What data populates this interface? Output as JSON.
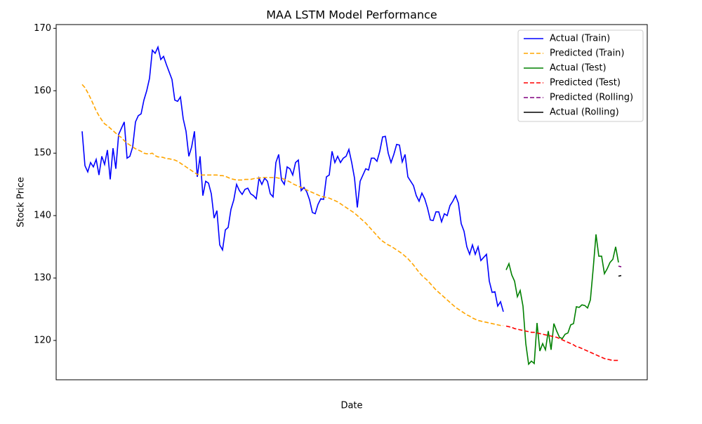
{
  "chart_data": {
    "type": "line",
    "title": "MAA LSTM Model Performance",
    "x_label": "Date",
    "y_label": "Stock Price",
    "xlim": [
      -9.25,
      201.25
    ],
    "ylim": [
      113.7,
      170.6
    ],
    "yticks": [
      120,
      130,
      140,
      150,
      160,
      170
    ],
    "legend": "upper right",
    "series": [
      {
        "name": "Actual (Train)",
        "color": "#0000ff",
        "linestyle": "solid",
        "x": [
          0,
          1,
          2,
          3,
          4,
          5,
          6,
          7,
          8,
          9,
          10,
          11,
          12,
          13,
          14,
          15,
          16,
          17,
          18,
          19,
          20,
          21,
          22,
          23,
          24,
          25,
          26,
          27,
          28,
          29,
          30,
          31,
          32,
          33,
          34,
          35,
          36,
          37,
          38,
          39,
          40,
          41,
          42,
          43,
          44,
          45,
          46,
          47,
          48,
          49,
          50,
          51,
          52,
          53,
          54,
          55,
          56,
          57,
          58,
          59,
          60,
          61,
          62,
          63,
          64,
          65,
          66,
          67,
          68,
          69,
          70,
          71,
          72,
          73,
          74,
          75,
          76,
          77,
          78,
          79,
          80,
          81,
          82,
          83,
          84,
          85,
          86,
          87,
          88,
          89,
          90,
          91,
          92,
          93,
          94,
          95,
          96,
          97,
          98,
          99,
          100,
          101,
          102,
          103,
          104,
          105,
          106,
          107,
          108,
          109,
          110,
          111,
          112,
          113,
          114,
          115,
          116,
          117,
          118,
          119,
          120,
          121,
          122,
          123,
          124,
          125,
          126,
          127,
          128,
          129,
          130,
          131,
          132,
          133,
          134,
          135,
          136,
          137,
          138,
          139,
          140,
          141,
          142,
          143,
          144,
          145,
          146,
          147,
          148,
          149,
          150
        ],
        "values": [
          153.5,
          148,
          147,
          148.5,
          147.8,
          149,
          146.5,
          149.5,
          148.2,
          150.5,
          145.8,
          150.8,
          147.5,
          153,
          154,
          155,
          149.2,
          149.5,
          151,
          155,
          156,
          156.3,
          158.5,
          160,
          162,
          166.5,
          166,
          167,
          165,
          165.5,
          164.2,
          163,
          161.8,
          158.5,
          158.3,
          159,
          155.5,
          153.5,
          149.5,
          151,
          153.5,
          146.2,
          149.5,
          143.2,
          145.5,
          145.2,
          143.5,
          139.6,
          140.8,
          135.3,
          134.5,
          137.7,
          138.1,
          141,
          142.5,
          145,
          144,
          143.4,
          144.2,
          144.4,
          143.5,
          143.2,
          142.7,
          146,
          145,
          146,
          145.5,
          143.5,
          143,
          148.5,
          149.8,
          145.7,
          145,
          147.8,
          147.5,
          146.5,
          148.5,
          148.9,
          144,
          144.5,
          143.8,
          142.5,
          140.5,
          140.3,
          141.8,
          142.7,
          142.6,
          146.2,
          146.5,
          150.3,
          148.5,
          149.5,
          148.5,
          149.2,
          149.5,
          150.6,
          148.5,
          146,
          141.3,
          145.5,
          146.5,
          147.5,
          147.3,
          149.2,
          149.2,
          148.7,
          150.3,
          152.6,
          152.7,
          150,
          148.5,
          149.8,
          151.4,
          151.3,
          148.6,
          149.8,
          146.2,
          145.5,
          144.8,
          143.2,
          142.3,
          143.6,
          142.7,
          141.2,
          139.3,
          139.2,
          140.6,
          140.6,
          139,
          140.3,
          140,
          141.6,
          142.3,
          143.2,
          142,
          138.7,
          137.5,
          135,
          133.8,
          135.3,
          133.8,
          135,
          132.8,
          133.3,
          133.8,
          129.5,
          127.7,
          127.8,
          125.5,
          126.2,
          124.6
        ]
      },
      {
        "name": "Predicted (Train)",
        "color": "#ffa500",
        "linestyle": "dashed",
        "x": [
          0,
          1,
          2,
          3,
          4,
          5,
          6,
          7,
          8,
          9,
          10,
          11,
          12,
          13,
          14,
          15,
          16,
          17,
          18,
          19,
          20,
          21,
          22,
          23,
          24,
          25,
          26,
          27,
          28,
          29,
          30,
          31,
          32,
          33,
          34,
          35,
          36,
          37,
          38,
          39,
          40,
          41,
          42,
          43,
          44,
          45,
          46,
          47,
          48,
          49,
          50,
          51,
          52,
          53,
          54,
          55,
          56,
          57,
          58,
          59,
          60,
          61,
          62,
          63,
          64,
          65,
          66,
          67,
          68,
          69,
          70,
          71,
          72,
          73,
          74,
          75,
          76,
          77,
          78,
          79,
          80,
          81,
          82,
          83,
          84,
          85,
          86,
          87,
          88,
          89,
          90,
          91,
          92,
          93,
          94,
          95,
          96,
          97,
          98,
          99,
          100,
          101,
          102,
          103,
          104,
          105,
          106,
          107,
          108,
          109,
          110,
          111,
          112,
          113,
          114,
          115,
          116,
          117,
          118,
          119,
          120,
          121,
          122,
          123,
          124,
          125,
          126,
          127,
          128,
          129,
          130,
          131,
          132,
          133,
          134,
          135,
          136,
          137,
          138,
          139,
          140,
          141,
          142,
          143,
          144,
          145,
          146,
          147,
          148,
          149,
          150
        ],
        "values": [
          161,
          160.5,
          159.7,
          158.8,
          157.8,
          156.8,
          156,
          155.3,
          154.7,
          154.4,
          154,
          153.6,
          153.2,
          152.8,
          152.5,
          152,
          151.6,
          151.3,
          151,
          150.7,
          150.5,
          150.3,
          150,
          149.9,
          149.9,
          150,
          149.6,
          149.4,
          149.4,
          149.3,
          149.1,
          149.1,
          149,
          148.9,
          148.7,
          148.4,
          148.1,
          147.8,
          147.5,
          147.2,
          146.9,
          146.6,
          146.5,
          146.5,
          146.5,
          146.5,
          146.5,
          146.5,
          146.5,
          146.4,
          146.4,
          146.3,
          146.1,
          145.9,
          145.8,
          145.7,
          145.7,
          145.7,
          145.8,
          145.8,
          145.8,
          145.9,
          146,
          146,
          146.1,
          146.1,
          146.1,
          146.1,
          146.1,
          146.1,
          146,
          146,
          145.8,
          145.6,
          145.4,
          145.1,
          144.9,
          144.7,
          144.5,
          144.3,
          144.1,
          143.9,
          143.7,
          143.5,
          143.3,
          143.1,
          143,
          142.9,
          142.8,
          142.6,
          142.4,
          142.2,
          141.9,
          141.6,
          141.3,
          141,
          140.7,
          140.4,
          140,
          139.6,
          139.2,
          138.8,
          138.3,
          137.8,
          137.3,
          136.8,
          136.3,
          135.9,
          135.6,
          135.3,
          135.1,
          134.8,
          134.5,
          134.2,
          133.9,
          133.5,
          133.1,
          132.6,
          132.1,
          131.5,
          130.9,
          130.4,
          130,
          129.6,
          129.1,
          128.6,
          128.1,
          127.7,
          127.3,
          126.9,
          126.5,
          126.1,
          125.7,
          125.3,
          125,
          124.7,
          124.4,
          124.1,
          123.9,
          123.6,
          123.4,
          123.2,
          123.1,
          123,
          122.9,
          122.8,
          122.7,
          122.6,
          122.5,
          122.4,
          122.4
        ]
      },
      {
        "name": "Actual (Test)",
        "color": "#008000",
        "linestyle": "solid",
        "x": [
          151,
          152,
          153,
          154,
          155,
          156,
          157,
          158,
          159,
          160,
          161,
          162,
          163,
          164,
          165,
          166,
          167,
          168,
          169,
          170,
          171,
          172,
          173,
          174,
          175,
          176,
          177,
          178,
          179,
          180,
          181,
          182,
          183,
          184,
          185,
          186,
          187,
          188,
          189,
          190,
          191
        ],
        "values": [
          131.3,
          132.3,
          130.5,
          129.5,
          127,
          128,
          125.5,
          119.5,
          116.2,
          116.7,
          116.3,
          122.8,
          118.3,
          119.5,
          118.5,
          121.5,
          118.5,
          122.7,
          121.5,
          120.5,
          120.3,
          121,
          121.2,
          122.5,
          122.7,
          125.4,
          125.3,
          125.7,
          125.6,
          125.2,
          126.5,
          131.5,
          137,
          133.5,
          133.5,
          130.7,
          131.5,
          132.5,
          133,
          135,
          132.5
        ]
      },
      {
        "name": "Predicted (Test)",
        "color": "#ff0000",
        "linestyle": "dashed",
        "x": [
          151,
          152,
          153,
          154,
          155,
          156,
          157,
          158,
          159,
          160,
          161,
          162,
          163,
          164,
          165,
          166,
          167,
          168,
          169,
          170,
          171,
          172,
          173,
          174,
          175,
          176,
          177,
          178,
          179,
          180,
          181,
          182,
          183,
          184,
          185,
          186,
          187,
          188,
          189,
          190,
          191
        ],
        "values": [
          122.3,
          122.2,
          122.1,
          121.9,
          121.8,
          121.7,
          121.6,
          121.5,
          121.4,
          121.3,
          121.3,
          121.2,
          121.1,
          121,
          120.9,
          120.8,
          120.7,
          120.6,
          120.5,
          120.3,
          120.1,
          119.9,
          119.7,
          119.5,
          119.3,
          119,
          118.9,
          118.7,
          118.5,
          118.3,
          118.1,
          117.9,
          117.7,
          117.5,
          117.3,
          117.1,
          117,
          116.9,
          116.8,
          116.8,
          116.8
        ]
      },
      {
        "name": "Predicted (Rolling)",
        "color": "#800080",
        "linestyle": "dashed",
        "x": [
          191,
          192
        ],
        "values": [
          131.9,
          131.8
        ]
      },
      {
        "name": "Actual (Rolling)",
        "color": "#000000",
        "linestyle": "solid",
        "x": [
          191,
          192
        ],
        "values": [
          130.3,
          130.4
        ]
      }
    ]
  }
}
